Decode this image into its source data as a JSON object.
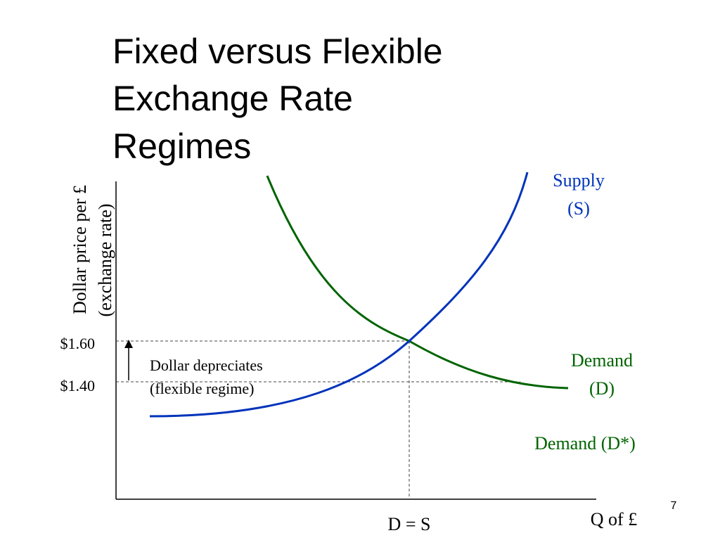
{
  "title": {
    "lines": [
      "Fixed versus Flexible",
      "Exchange Rate",
      "Regimes"
    ]
  },
  "y_axis_label": {
    "lines": [
      "Dollar price per £",
      "(exchange rate)"
    ]
  },
  "x_axis_label": "Q of £",
  "price_labels": [
    "$1.60",
    "$1.40"
  ],
  "annotation": {
    "lines": [
      "Dollar depreciates",
      "(flexible regime)"
    ]
  },
  "curves": {
    "supply": {
      "lines": [
        "Supply",
        "(S)"
      ]
    },
    "demand": {
      "lines": [
        "Demand",
        "(D)"
      ]
    },
    "demand_new": "Demand (D*)"
  },
  "equilibrium_label": "D = S",
  "page_number": "7"
}
